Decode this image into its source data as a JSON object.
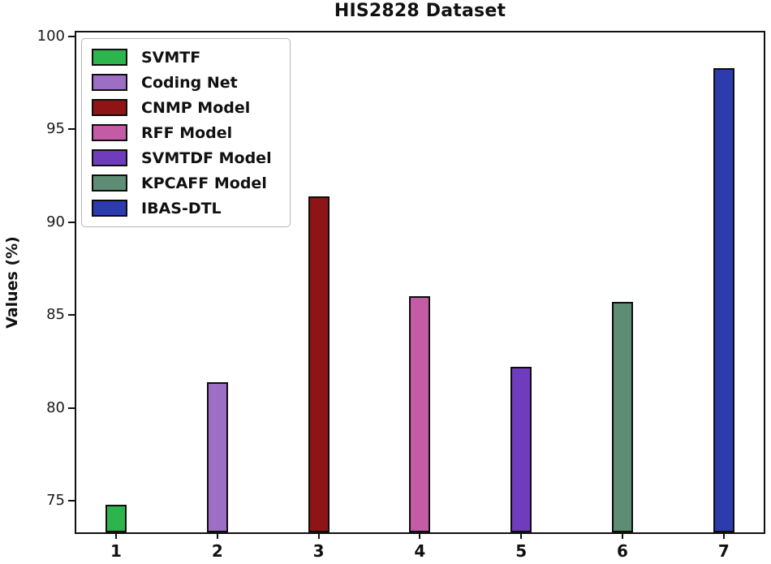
{
  "chart_data": {
    "type": "bar",
    "title": "HIS2828 Dataset",
    "xlabel": "",
    "ylabel": "Values (%)",
    "categories": [
      "1",
      "2",
      "3",
      "4",
      "5",
      "6",
      "7"
    ],
    "series": [
      {
        "name": "SVMTF",
        "value": 74.8,
        "color": "#2db44c"
      },
      {
        "name": "Coding Net",
        "value": 81.4,
        "color": "#9d6fc4"
      },
      {
        "name": "CNMP Model",
        "value": 91.4,
        "color": "#8f1416"
      },
      {
        "name": "RFF Model",
        "value": 86.0,
        "color": "#c45ba5"
      },
      {
        "name": "SVMTDF Model",
        "value": 82.2,
        "color": "#6e3cbc"
      },
      {
        "name": "KPCAFF Model",
        "value": 85.7,
        "color": "#5d8d74"
      },
      {
        "name": "IBAS-DTL",
        "value": 98.3,
        "color": "#2c3cae"
      }
    ],
    "bar_edge_color": "#0d0d0d",
    "yticks": [
      75,
      80,
      85,
      90,
      95,
      100
    ],
    "ylim": [
      73.3,
      100.2
    ],
    "grid": false,
    "legend_position": "upper-left"
  }
}
